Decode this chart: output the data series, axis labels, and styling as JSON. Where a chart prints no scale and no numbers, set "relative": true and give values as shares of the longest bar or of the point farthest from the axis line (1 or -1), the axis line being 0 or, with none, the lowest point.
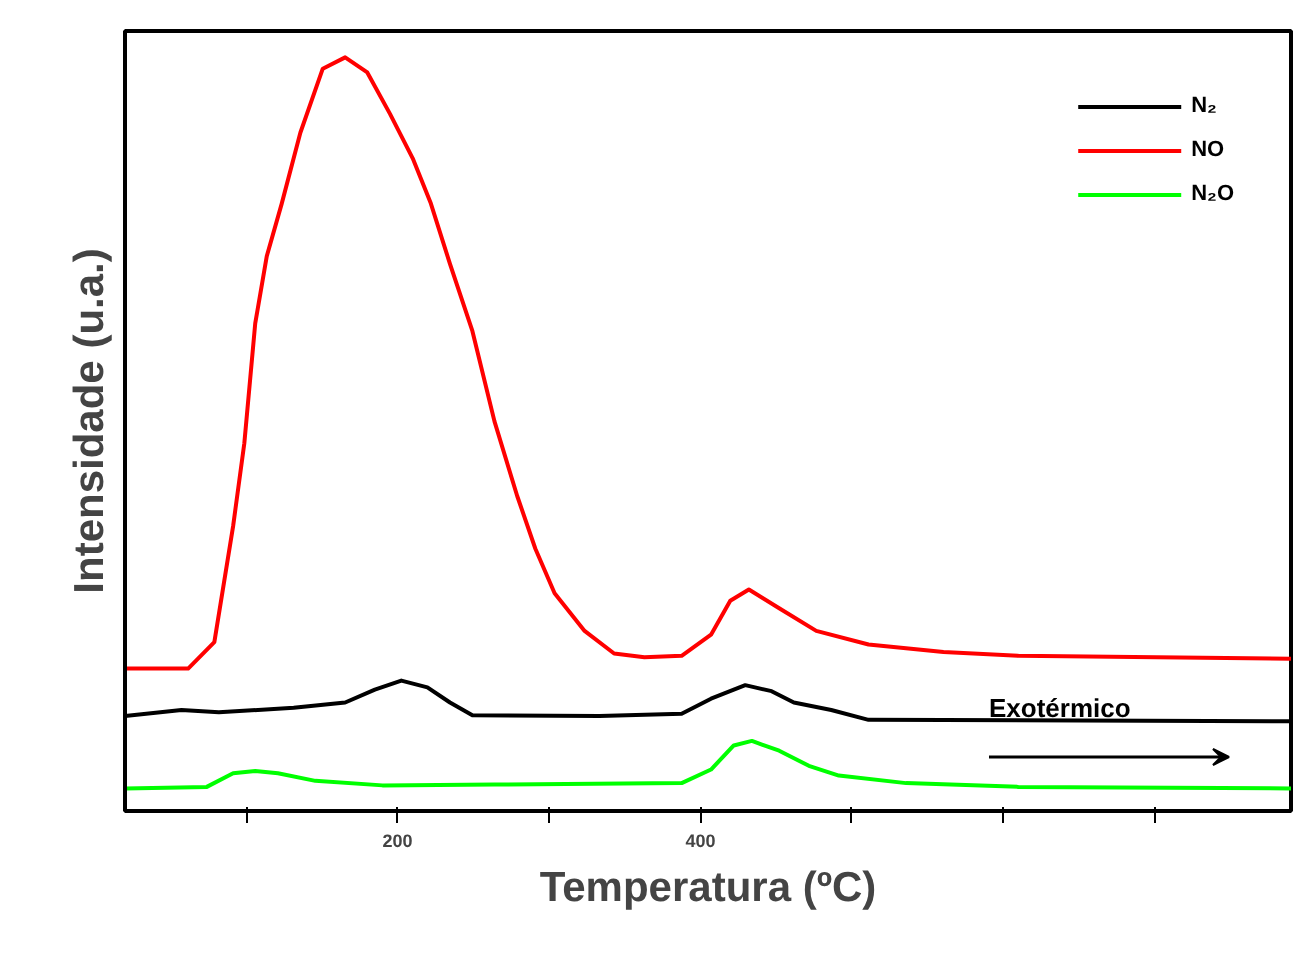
{
  "chart_data": {
    "type": "line",
    "relative": true,
    "xlabel": "Temperatura (ºC)",
    "ylabel": "Intensidade (u.a.)",
    "annotations": [
      "Exotérmico"
    ],
    "xlim": [
      20,
      790
    ],
    "xticks": [
      {
        "value": 100,
        "label": null
      },
      200,
      {
        "value": 300,
        "label": null
      },
      400,
      {
        "value": 500,
        "label": null
      },
      {
        "value": 600,
        "label": null
      },
      {
        "value": 700,
        "label": null
      }
    ],
    "tick_labels": "x",
    "legend": "top right",
    "grid": false,
    "series": [
      {
        "name": "N₂",
        "color": "#000000",
        "x": [
          20,
          57.3,
          82,
          131.4,
          165.4,
          185,
          202.5,
          219.7,
          234.6,
          249.4,
          333.3,
          387.6,
          407,
          429.6,
          447,
          461.7,
          486.4,
          511,
          790
        ],
        "values": [
          0.126,
          0.134,
          0.131,
          0.137,
          0.144,
          0.161,
          0.173,
          0.164,
          0.144,
          0.127,
          0.126,
          0.129,
          0.149,
          0.167,
          0.159,
          0.144,
          0.134,
          0.121,
          0.119
        ]
      },
      {
        "name": "NO",
        "color": "#ff0000",
        "x": [
          20,
          61.7,
          79,
          91.4,
          98.8,
          106,
          113.6,
          123.5,
          135.8,
          150.6,
          165.4,
          180,
          195,
          210,
          222,
          234.6,
          249.4,
          264,
          279,
          291,
          303.7,
          323.5,
          343,
          363,
          387.6,
          407,
          419.7,
          432,
          452,
          476.5,
          511,
          560.5,
          610,
          790
        ],
        "values": [
          0.189,
          0.189,
          0.224,
          0.378,
          0.488,
          0.647,
          0.736,
          0.806,
          0.9,
          0.985,
          1.0,
          0.98,
          0.925,
          0.866,
          0.806,
          0.726,
          0.637,
          0.517,
          0.418,
          0.348,
          0.289,
          0.239,
          0.209,
          0.204,
          0.206,
          0.234,
          0.279,
          0.294,
          0.269,
          0.239,
          0.221,
          0.211,
          0.206,
          0.202
        ]
      },
      {
        "name": "N₂O",
        "color": "#00ff00",
        "x": [
          20,
          74,
          91.4,
          106,
          121,
          145.7,
          190,
          264,
          387.6,
          407,
          422,
          434,
          452,
          471.6,
          491.4,
          535.8,
          610,
          790
        ],
        "values": [
          0.03,
          0.032,
          0.05,
          0.053,
          0.05,
          0.04,
          0.034,
          0.035,
          0.037,
          0.055,
          0.087,
          0.093,
          0.08,
          0.06,
          0.047,
          0.037,
          0.032,
          0.03
        ]
      }
    ]
  }
}
